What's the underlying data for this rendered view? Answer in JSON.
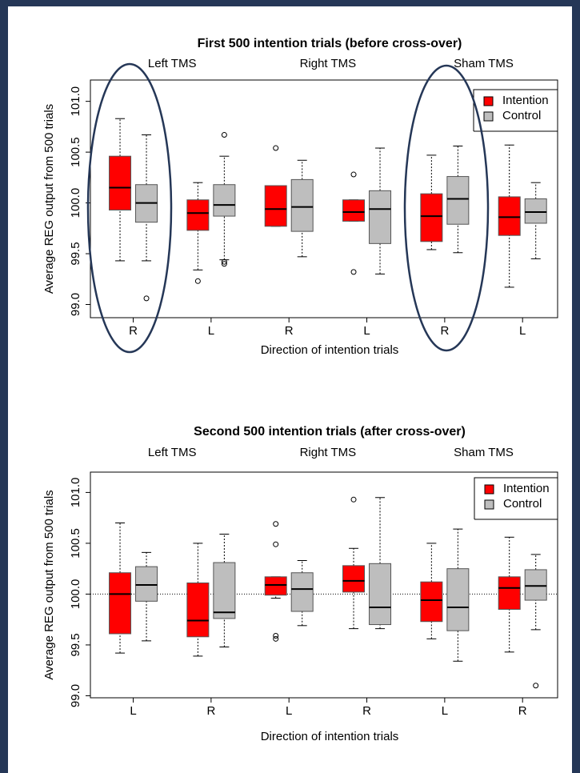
{
  "chart_data": [
    {
      "type": "box",
      "title": "First 500 intention trials (before cross-over)",
      "groups": [
        "Left TMS",
        "Right TMS",
        "Sham TMS"
      ],
      "categories": [
        "R",
        "L",
        "R",
        "L",
        "R",
        "L"
      ],
      "xlabel": "Direction of intention trials",
      "ylabel": "Average REG output from 500 trials",
      "ylim": [
        98.87,
        101.21
      ],
      "yticks": [
        {
          "value": 99,
          "label": "99.0"
        },
        99.5,
        {
          "value": 100,
          "label": "100.0"
        },
        100.5,
        {
          "value": 101,
          "label": "101.0"
        }
      ],
      "series": [
        {
          "name": "Intention",
          "color": "#ff0000",
          "whisker_low": [
            99.43,
            99.34,
            99.77,
            99.82,
            99.54,
            99.17
          ],
          "q1": [
            99.93,
            99.73,
            99.77,
            99.82,
            99.62,
            99.68
          ],
          "median": [
            100.15,
            99.9,
            99.94,
            99.91,
            99.87,
            99.86
          ],
          "q3": [
            100.46,
            100.03,
            100.17,
            100.03,
            100.09,
            100.06
          ],
          "whisker_high": [
            100.83,
            100.2,
            100.17,
            100.03,
            100.47,
            100.57
          ],
          "outliers": [
            [],
            [
              99.23
            ],
            [
              100.54
            ],
            [
              100.28,
              99.32
            ],
            [],
            []
          ]
        },
        {
          "name": "Control",
          "color": "#bebebe",
          "whisker_low": [
            99.43,
            99.44,
            99.47,
            99.3,
            99.51,
            99.45
          ],
          "q1": [
            99.81,
            99.87,
            99.72,
            99.6,
            99.79,
            99.8
          ],
          "median": [
            100.0,
            99.98,
            99.96,
            99.94,
            100.04,
            99.91
          ],
          "q3": [
            100.18,
            100.18,
            100.23,
            100.12,
            100.26,
            100.04
          ],
          "whisker_high": [
            100.67,
            100.46,
            100.42,
            100.54,
            100.56,
            100.2
          ],
          "outliers": [
            [
              99.06
            ],
            [
              100.67,
              99.42,
              99.4
            ],
            [],
            [],
            [],
            []
          ]
        }
      ]
    },
    {
      "type": "box",
      "title": "Second 500 intention trials (after cross-over)",
      "groups": [
        "Left TMS",
        "Right TMS",
        "Sham TMS"
      ],
      "categories": [
        "L",
        "R",
        "L",
        "R",
        "L",
        "R"
      ],
      "xlabel": "Direction of intention trials",
      "ylabel": "Average REG output from 500 trials",
      "ylim": [
        98.98,
        101.2
      ],
      "yticks": [
        {
          "value": 99,
          "label": "99.0"
        },
        99.5,
        {
          "value": 100,
          "label": "100.0"
        },
        100.5,
        {
          "value": 101,
          "label": "101.0"
        }
      ],
      "hline": 100,
      "series": [
        {
          "name": "Intention",
          "color": "#ff0000",
          "whisker_low": [
            99.42,
            99.39,
            99.96,
            99.66,
            99.56,
            99.43
          ],
          "q1": [
            99.61,
            99.58,
            99.99,
            100.02,
            99.73,
            99.85
          ],
          "median": [
            100.0,
            99.74,
            100.09,
            100.13,
            99.94,
            100.06
          ],
          "q3": [
            100.21,
            100.11,
            100.17,
            100.28,
            100.12,
            100.17
          ],
          "whisker_high": [
            100.7,
            100.5,
            100.17,
            100.45,
            100.5,
            100.56
          ],
          "outliers": [
            [],
            [],
            [
              100.69,
              100.49,
              99.59,
              99.56
            ],
            [
              100.93
            ],
            [],
            []
          ]
        },
        {
          "name": "Control",
          "color": "#bebebe",
          "whisker_low": [
            99.54,
            99.48,
            99.69,
            99.66,
            99.34,
            99.65
          ],
          "q1": [
            99.93,
            99.76,
            99.83,
            99.7,
            99.64,
            99.94
          ],
          "median": [
            100.09,
            99.82,
            100.05,
            99.87,
            99.87,
            100.08
          ],
          "q3": [
            100.27,
            100.31,
            100.21,
            100.3,
            100.25,
            100.24
          ],
          "whisker_high": [
            100.41,
            100.59,
            100.33,
            100.95,
            100.64,
            100.39
          ],
          "outliers": [
            [],
            [],
            [],
            [],
            [],
            [
              99.1
            ]
          ]
        }
      ]
    }
  ]
}
